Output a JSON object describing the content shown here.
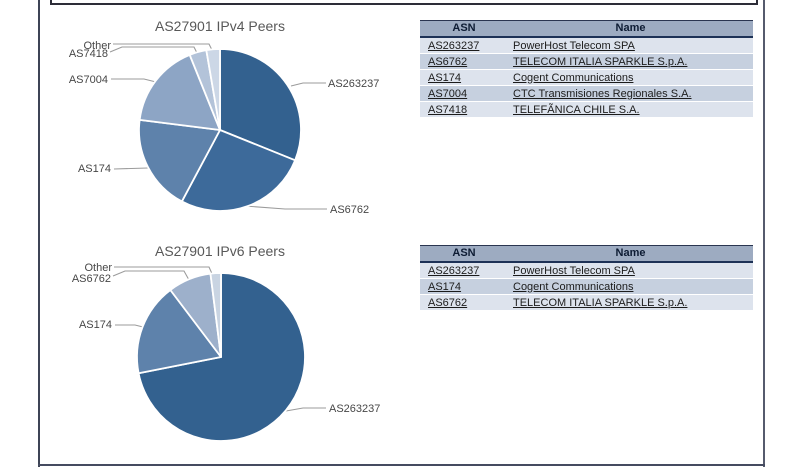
{
  "frame": {
    "note_colors": {
      "container_border": "#3e4456",
      "table_header_bg": "#9dabc1",
      "table_header_rule": "#1d3156",
      "row_light": "#dde3ed",
      "row_dark": "#c6d0df",
      "leader_line": "#9b9b9b"
    }
  },
  "ipv4_section": {
    "table": {
      "col_asn": "ASN",
      "col_name": "Name",
      "rows": [
        {
          "asn": "AS263237",
          "name": "PowerHost Telecom SPA"
        },
        {
          "asn": "AS6762",
          "name": "TELECOM ITALIA SPARKLE S.p.A."
        },
        {
          "asn": "AS174",
          "name": "Cogent Communications"
        },
        {
          "asn": "AS7004",
          "name": "CTC Transmisiones Regionales S.A."
        },
        {
          "asn": "AS7418",
          "name": "TELEFÃNICA CHILE S.A."
        }
      ]
    }
  },
  "ipv6_section": {
    "table": {
      "col_asn": "ASN",
      "col_name": "Name",
      "rows": [
        {
          "asn": "AS263237",
          "name": "PowerHost Telecom SPA"
        },
        {
          "asn": "AS174",
          "name": "Cogent Communications"
        },
        {
          "asn": "AS6762",
          "name": "TELECOM ITALIA SPARKLE S.p.A."
        }
      ]
    }
  },
  "chart_data": [
    {
      "type": "pie",
      "title": "AS27901 IPv4 Peers",
      "labels": [
        "AS263237",
        "AS6762",
        "AS174",
        "AS7004",
        "AS7418",
        "Other"
      ],
      "values_percent": [
        31.1,
        26.7,
        19.2,
        16.9,
        3.4,
        2.7
      ],
      "colors": [
        "#33618f",
        "#3d6a9a",
        "#5e82ab",
        "#8da5c5",
        "#b3c3d9",
        "#ccd7e6"
      ],
      "start_angle_deg": 0,
      "clockwise": true,
      "slice_separator": "#ffffff",
      "legend_position": "outside-leader-lines"
    },
    {
      "type": "pie",
      "title": "AS27901 IPv6 Peers",
      "labels": [
        "AS263237",
        "AS174",
        "AS6762",
        "Other"
      ],
      "values_percent": [
        71.9,
        17.8,
        8.3,
        2.0
      ],
      "colors": [
        "#33618f",
        "#5e82ab",
        "#9db0cb",
        "#c9d4e2"
      ],
      "start_angle_deg": 0,
      "clockwise": true,
      "slice_separator": "#ffffff",
      "legend_position": "outside-leader-lines"
    }
  ]
}
